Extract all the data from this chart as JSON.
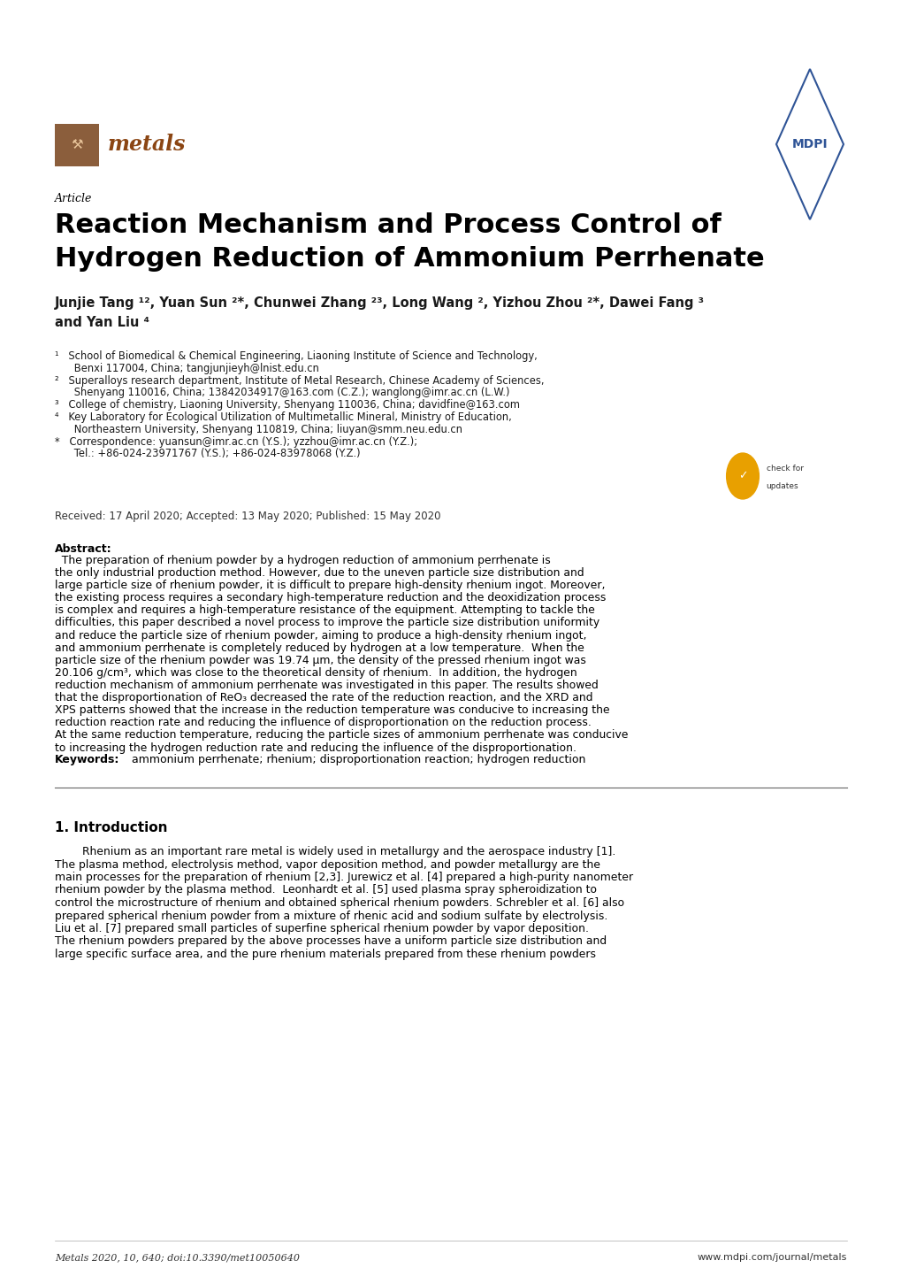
{
  "page_width": 10.2,
  "page_height": 14.42,
  "bg_color": "#ffffff",
  "text_color": "#000000",
  "link_color": "#4472c4",
  "journal_name_color": "#8B4513",
  "metals_logo_bg": "#8B5E3C",
  "article_label": "Article",
  "title_line1": "Reaction Mechanism and Process Control of",
  "title_line2": "Hydrogen Reduction of Ammonium Perrhenate",
  "authors_line1": "Junjie Tang ¹², Yuan Sun ²*, Chunwei Zhang ²³, Long Wang ², Yizhou Zhou ²*, Dawei Fang ³",
  "authors_line2": "and Yan Liu ⁴",
  "affil_lines": [
    "¹   School of Biomedical & Chemical Engineering, Liaoning Institute of Science and Technology,",
    "      Benxi 117004, China; tangjunjieyh@lnist.edu.cn",
    "²   Superalloys research department, Institute of Metal Research, Chinese Academy of Sciences,",
    "      Shenyang 110016, China; 13842034917@163.com (C.Z.); wanglong@imr.ac.cn (L.W.)",
    "³   College of chemistry, Liaoning University, Shenyang 110036, China; davidfine@163.com",
    "⁴   Key Laboratory for Ecological Utilization of Multimetallic Mineral, Ministry of Education,",
    "      Northeastern University, Shenyang 110819, China; liuyan@smm.neu.edu.cn",
    "*   Correspondence: yuansun@imr.ac.cn (Y.S.); yzzhou@imr.ac.cn (Y.Z.);",
    "      Tel.: +86-024-23971767 (Y.S.); +86-024-83978068 (Y.Z.)"
  ],
  "received": "Received: 17 April 2020; Accepted: 13 May 2020; Published: 15 May 2020",
  "abstract_lines": [
    "  The preparation of rhenium powder by a hydrogen reduction of ammonium perrhenate is",
    "the only industrial production method. However, due to the uneven particle size distribution and",
    "large particle size of rhenium powder, it is difficult to prepare high-density rhenium ingot. Moreover,",
    "the existing process requires a secondary high-temperature reduction and the deoxidization process",
    "is complex and requires a high-temperature resistance of the equipment. Attempting to tackle the",
    "difficulties, this paper described a novel process to improve the particle size distribution uniformity",
    "and reduce the particle size of rhenium powder, aiming to produce a high-density rhenium ingot,",
    "and ammonium perrhenate is completely reduced by hydrogen at a low temperature.  When the",
    "particle size of the rhenium powder was 19.74 μm, the density of the pressed rhenium ingot was",
    "20.106 g/cm³, which was close to the theoretical density of rhenium.  In addition, the hydrogen",
    "reduction mechanism of ammonium perrhenate was investigated in this paper. The results showed",
    "that the disproportionation of ReO₃ decreased the rate of the reduction reaction, and the XRD and",
    "XPS patterns showed that the increase in the reduction temperature was conducive to increasing the",
    "reduction reaction rate and reducing the influence of disproportionation on the reduction process.",
    "At the same reduction temperature, reducing the particle sizes of ammonium perrhenate was conducive",
    "to increasing the hydrogen reduction rate and reducing the influence of the disproportionation."
  ],
  "keywords_text": "ammonium perrhenate; rhenium; disproportionation reaction; hydrogen reduction",
  "section1_title": "1. Introduction",
  "intro_lines": [
    "        Rhenium as an important rare metal is widely used in metallurgy and the aerospace industry [1].",
    "The plasma method, electrolysis method, vapor deposition method, and powder metallurgy are the",
    "main processes for the preparation of rhenium [2,3]. Jurewicz et al. [4] prepared a high-purity nanometer",
    "rhenium powder by the plasma method.  Leonhardt et al. [5] used plasma spray spheroidization to",
    "control the microstructure of rhenium and obtained spherical rhenium powders. Schrebler et al. [6] also",
    "prepared spherical rhenium powder from a mixture of rhenic acid and sodium sulfate by electrolysis.",
    "Liu et al. [7] prepared small particles of superfine spherical rhenium powder by vapor deposition.",
    "The rhenium powders prepared by the above processes have a uniform particle size distribution and",
    "large specific surface area, and the pure rhenium materials prepared from these rhenium powders"
  ],
  "footer_left": "Metals 2020, 10, 640; doi:10.3390/met10050640",
  "footer_right": "www.mdpi.com/journal/metals"
}
